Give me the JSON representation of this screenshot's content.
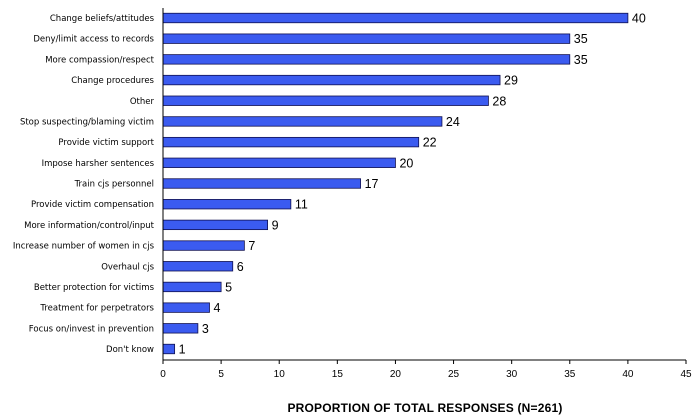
{
  "chart_data": {
    "type": "bar",
    "orientation": "horizontal",
    "categories": [
      "Change beliefs/attitudes",
      "Deny/limit access to records",
      "More compassion/respect",
      "Change procedures",
      "Other",
      "Stop suspecting/blaming victim",
      "Provide victim support",
      "Impose harsher sentences",
      "Train cjs personnel",
      "Provide victim compensation",
      "More information/control/input",
      "Increase number of women in cjs",
      "Overhaul cjs",
      "Better protection for victims",
      "Treatment for perpetrators",
      "Focus on/invest in prevention",
      "Don't know"
    ],
    "values": [
      40,
      35,
      35,
      29,
      28,
      24,
      22,
      20,
      17,
      11,
      9,
      7,
      6,
      5,
      4,
      3,
      1
    ],
    "xlabel": "PROPORTION OF TOTAL RESPONSES (N=261)",
    "xlim": [
      0,
      45
    ],
    "xticks": [
      "0",
      "5",
      "10",
      "15",
      "20",
      "25",
      "30",
      "35",
      "40",
      "45"
    ],
    "grid": false,
    "legend": "none",
    "bar_color": "#3b5bf0",
    "bar_border": "#101050"
  }
}
